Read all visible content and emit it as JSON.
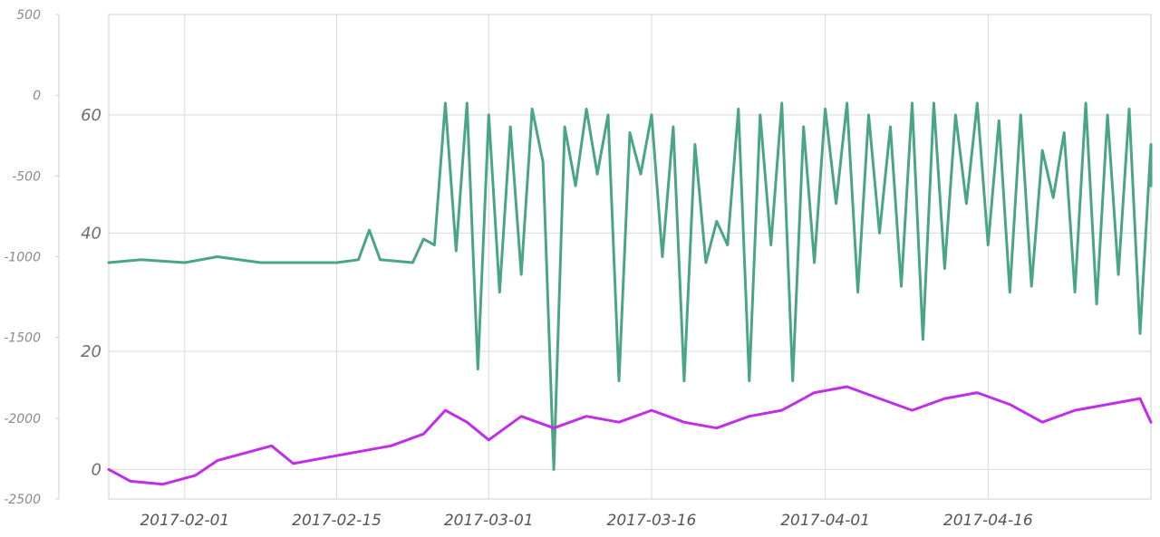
{
  "chart_data": {
    "type": "line",
    "title": "",
    "xlabel": "",
    "ylabel": "",
    "grid": true,
    "legend": "none",
    "x_range": [
      "2017-01-25",
      "2017-05-01"
    ],
    "x_ticks": [
      "2017-02-01",
      "2017-02-15",
      "2017-03-01",
      "2017-03-16",
      "2017-04-01",
      "2017-04-16"
    ],
    "y_axes": {
      "outer_left": {
        "range": [
          -2500,
          500
        ],
        "ticks": [
          "500",
          "0",
          "-500",
          "-1000",
          "-1500",
          "-2000",
          "-2500"
        ]
      },
      "inner_left": {
        "range": [
          -5,
          77
        ],
        "ticks": [
          "60",
          "40",
          "20",
          "0"
        ]
      }
    },
    "series": [
      {
        "axis": "inner_left",
        "color": "#4aa588",
        "points": [
          [
            "2017-01-25",
            35
          ],
          [
            "2017-01-28",
            35.5
          ],
          [
            "2017-02-01",
            35
          ],
          [
            "2017-02-04",
            36
          ],
          [
            "2017-02-08",
            35
          ],
          [
            "2017-02-12",
            35
          ],
          [
            "2017-02-15",
            35
          ],
          [
            "2017-02-17",
            35.5
          ],
          [
            "2017-02-18",
            40.5
          ],
          [
            "2017-02-19",
            35.5
          ],
          [
            "2017-02-22",
            35
          ],
          [
            "2017-02-23",
            39
          ],
          [
            "2017-02-24",
            38
          ],
          [
            "2017-02-25",
            62
          ],
          [
            "2017-02-26",
            37
          ],
          [
            "2017-02-27",
            62
          ],
          [
            "2017-02-28",
            17
          ],
          [
            "2017-03-01",
            60
          ],
          [
            "2017-03-02",
            30
          ],
          [
            "2017-03-03",
            58
          ],
          [
            "2017-03-04",
            33
          ],
          [
            "2017-03-05",
            61
          ],
          [
            "2017-03-06",
            52
          ],
          [
            "2017-03-07",
            0
          ],
          [
            "2017-03-08",
            58
          ],
          [
            "2017-03-09",
            48
          ],
          [
            "2017-03-10",
            61
          ],
          [
            "2017-03-11",
            50
          ],
          [
            "2017-03-12",
            60
          ],
          [
            "2017-03-13",
            15
          ],
          [
            "2017-03-14",
            57
          ],
          [
            "2017-03-15",
            50
          ],
          [
            "2017-03-16",
            60
          ],
          [
            "2017-03-17",
            36
          ],
          [
            "2017-03-18",
            58
          ],
          [
            "2017-03-19",
            15
          ],
          [
            "2017-03-20",
            55
          ],
          [
            "2017-03-21",
            35
          ],
          [
            "2017-03-22",
            42
          ],
          [
            "2017-03-23",
            38
          ],
          [
            "2017-03-24",
            61
          ],
          [
            "2017-03-25",
            15
          ],
          [
            "2017-03-26",
            60
          ],
          [
            "2017-03-27",
            38
          ],
          [
            "2017-03-28",
            62
          ],
          [
            "2017-03-29",
            15
          ],
          [
            "2017-03-30",
            58
          ],
          [
            "2017-03-31",
            35
          ],
          [
            "2017-04-01",
            61
          ],
          [
            "2017-04-02",
            45
          ],
          [
            "2017-04-03",
            62
          ],
          [
            "2017-04-04",
            30
          ],
          [
            "2017-04-05",
            60
          ],
          [
            "2017-04-06",
            40
          ],
          [
            "2017-04-07",
            58
          ],
          [
            "2017-04-08",
            31
          ],
          [
            "2017-04-09",
            62
          ],
          [
            "2017-04-10",
            22
          ],
          [
            "2017-04-11",
            62
          ],
          [
            "2017-04-12",
            34
          ],
          [
            "2017-04-13",
            60
          ],
          [
            "2017-04-14",
            45
          ],
          [
            "2017-04-15",
            62
          ],
          [
            "2017-04-16",
            38
          ],
          [
            "2017-04-17",
            59
          ],
          [
            "2017-04-18",
            30
          ],
          [
            "2017-04-19",
            60
          ],
          [
            "2017-04-20",
            31
          ],
          [
            "2017-04-21",
            54
          ],
          [
            "2017-04-22",
            46
          ],
          [
            "2017-04-23",
            57
          ],
          [
            "2017-04-24",
            30
          ],
          [
            "2017-04-25",
            62
          ],
          [
            "2017-04-26",
            28
          ],
          [
            "2017-04-27",
            60
          ],
          [
            "2017-04-28",
            33
          ],
          [
            "2017-04-29",
            61
          ],
          [
            "2017-04-30",
            23
          ],
          [
            "2017-05-01",
            55
          ],
          [
            "2017-05-02",
            48
          ]
        ]
      },
      {
        "axis": "inner_left",
        "color": "#c12ee8",
        "points": [
          [
            "2017-01-25",
            0
          ],
          [
            "2017-01-27",
            -2
          ],
          [
            "2017-01-30",
            -2.5
          ],
          [
            "2017-02-02",
            -1
          ],
          [
            "2017-02-04",
            1.5
          ],
          [
            "2017-02-07",
            3
          ],
          [
            "2017-02-09",
            4
          ],
          [
            "2017-02-11",
            1
          ],
          [
            "2017-02-14",
            2
          ],
          [
            "2017-02-17",
            3
          ],
          [
            "2017-02-20",
            4
          ],
          [
            "2017-02-23",
            6
          ],
          [
            "2017-02-25",
            10
          ],
          [
            "2017-02-27",
            8
          ],
          [
            "2017-03-01",
            5
          ],
          [
            "2017-03-04",
            9
          ],
          [
            "2017-03-07",
            7
          ],
          [
            "2017-03-10",
            9
          ],
          [
            "2017-03-13",
            8
          ],
          [
            "2017-03-16",
            10
          ],
          [
            "2017-03-19",
            8
          ],
          [
            "2017-03-22",
            7
          ],
          [
            "2017-03-25",
            9
          ],
          [
            "2017-03-28",
            10
          ],
          [
            "2017-03-31",
            13
          ],
          [
            "2017-04-03",
            14
          ],
          [
            "2017-04-06",
            12
          ],
          [
            "2017-04-09",
            10
          ],
          [
            "2017-04-12",
            12
          ],
          [
            "2017-04-15",
            13
          ],
          [
            "2017-04-18",
            11
          ],
          [
            "2017-04-21",
            8
          ],
          [
            "2017-04-24",
            10
          ],
          [
            "2017-04-27",
            11
          ],
          [
            "2017-04-30",
            12
          ],
          [
            "2017-05-02",
            8
          ]
        ]
      }
    ]
  }
}
